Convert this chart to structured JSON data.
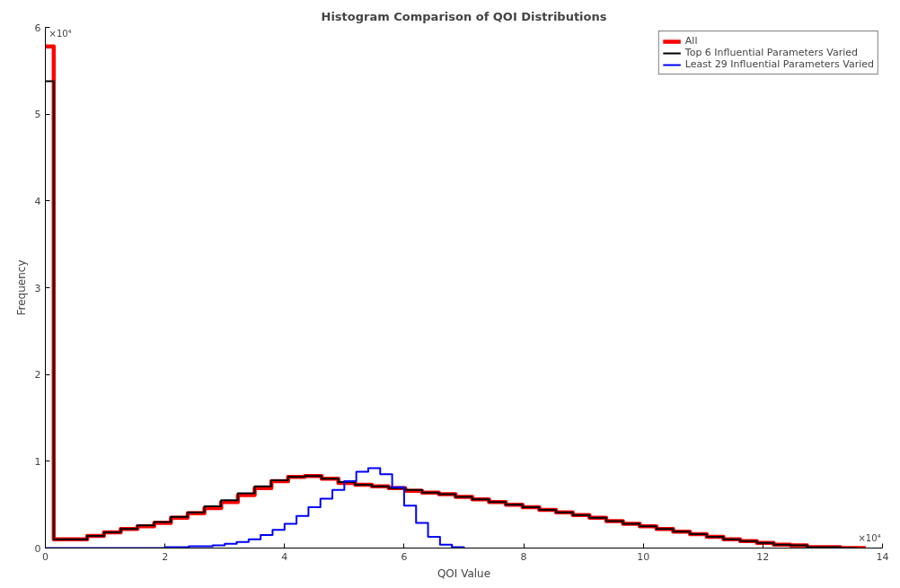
{
  "chart_data": {
    "type": "step",
    "title": "Histogram Comparison of QOI Distributions",
    "xlabel": "QOI Value",
    "ylabel": "Frequency",
    "annotations": [
      "×10⁴",
      "×10⁴"
    ],
    "xlim": [
      0,
      14
    ],
    "xticks": [
      0,
      2,
      4,
      6,
      8,
      10,
      12,
      14
    ],
    "ylim": [
      0,
      6
    ],
    "yticks": [
      0,
      1,
      2,
      3,
      4,
      5,
      6
    ],
    "grid": false,
    "legend": "top right",
    "series": [
      {
        "name": "All",
        "color": "#ff0000",
        "x": [
          0,
          0.14,
          0.42,
          0.7,
          0.98,
          1.26,
          1.54,
          1.82,
          2.1,
          2.38,
          2.66,
          2.94,
          3.22,
          3.5,
          3.78,
          4.06,
          4.34,
          4.62,
          4.9,
          5.18,
          5.46,
          5.74,
          6.02,
          6.3,
          6.58,
          6.86,
          7.14,
          7.42,
          7.7,
          7.98,
          8.26,
          8.54,
          8.82,
          9.1,
          9.38,
          9.66,
          9.94,
          10.22,
          10.5,
          10.78,
          11.06,
          11.34,
          11.62,
          11.9,
          12.18,
          12.46,
          12.74,
          13.02,
          13.3,
          13.58,
          13.72
        ],
        "values": [
          5.78,
          0.1,
          0.1,
          0.14,
          0.18,
          0.22,
          0.25,
          0.29,
          0.35,
          0.4,
          0.46,
          0.53,
          0.61,
          0.69,
          0.77,
          0.82,
          0.83,
          0.8,
          0.75,
          0.73,
          0.71,
          0.69,
          0.66,
          0.64,
          0.62,
          0.59,
          0.56,
          0.53,
          0.5,
          0.47,
          0.44,
          0.41,
          0.38,
          0.35,
          0.31,
          0.28,
          0.25,
          0.22,
          0.19,
          0.16,
          0.13,
          0.1,
          0.08,
          0.06,
          0.04,
          0.03,
          0.01,
          0.01,
          0,
          0,
          0
        ]
      },
      {
        "name": "Top 6 Influential Parameters Varied",
        "color": "#000000",
        "x": [
          0,
          0.14,
          0.42,
          0.7,
          0.98,
          1.26,
          1.54,
          1.82,
          2.1,
          2.38,
          2.66,
          2.94,
          3.22,
          3.5,
          3.78,
          4.06,
          4.34,
          4.62,
          4.9,
          5.18,
          5.46,
          5.74,
          6.02,
          6.3,
          6.58,
          6.86,
          7.14,
          7.42,
          7.7,
          7.98,
          8.26,
          8.54,
          8.82,
          9.1,
          9.38,
          9.66,
          9.94,
          10.22,
          10.5,
          10.78,
          11.06,
          11.34,
          11.62,
          11.9,
          12.18,
          12.46,
          12.74,
          13.02,
          13.3,
          13.58
        ],
        "values": [
          5.38,
          0.1,
          0.1,
          0.14,
          0.18,
          0.22,
          0.26,
          0.3,
          0.36,
          0.41,
          0.48,
          0.55,
          0.63,
          0.71,
          0.78,
          0.82,
          0.83,
          0.8,
          0.76,
          0.73,
          0.71,
          0.69,
          0.67,
          0.64,
          0.62,
          0.59,
          0.56,
          0.53,
          0.5,
          0.47,
          0.44,
          0.41,
          0.38,
          0.35,
          0.31,
          0.28,
          0.25,
          0.22,
          0.19,
          0.16,
          0.13,
          0.1,
          0.08,
          0.06,
          0.04,
          0.03,
          0.01,
          0.01,
          0,
          0
        ]
      },
      {
        "name": "Least 29 Influential Parameters Varied",
        "color": "#0000ff",
        "x": [
          0,
          0.2,
          0.4,
          0.6,
          0.8,
          1,
          1.2,
          1.4,
          1.6,
          1.8,
          2,
          2.2,
          2.4,
          2.6,
          2.8,
          3,
          3.2,
          3.4,
          3.6,
          3.8,
          4,
          4.2,
          4.4,
          4.6,
          4.8,
          5,
          5.2,
          5.4,
          5.6,
          5.8,
          6,
          6.2,
          6.4,
          6.6,
          6.8,
          7
        ],
        "values": [
          0,
          0,
          0,
          0,
          0,
          0,
          0,
          0,
          0,
          0,
          0.01,
          0.01,
          0.02,
          0.02,
          0.03,
          0.05,
          0.07,
          0.1,
          0.15,
          0.21,
          0.28,
          0.37,
          0.47,
          0.57,
          0.67,
          0.77,
          0.88,
          0.92,
          0.85,
          0.7,
          0.49,
          0.29,
          0.13,
          0.04,
          0.01,
          0
        ]
      }
    ]
  }
}
